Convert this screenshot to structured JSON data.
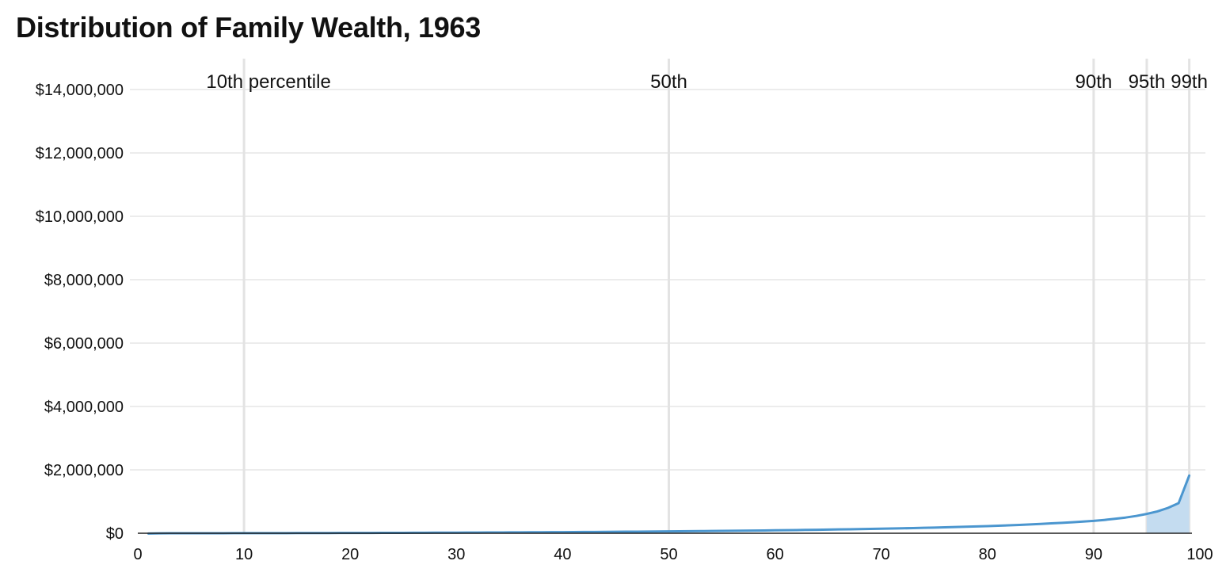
{
  "title": "Distribution of Family Wealth, 1963",
  "colors": {
    "line": "#4b96cf",
    "area": "#c4dcf0",
    "grid": "#d9d9d9",
    "percentile_line": "#e3e3e3"
  },
  "chart_data": {
    "type": "area",
    "title": "Distribution of Family Wealth, 1963",
    "xlabel": "",
    "ylabel": "",
    "xlim": [
      0,
      100
    ],
    "ylim": [
      0,
      14000000
    ],
    "grid": true,
    "x_ticks": [
      0,
      10,
      20,
      30,
      40,
      50,
      60,
      70,
      80,
      90,
      100
    ],
    "x_tick_labels": [
      "0",
      "10",
      "20",
      "30",
      "40",
      "50",
      "60",
      "70",
      "80",
      "90",
      "100"
    ],
    "y_ticks": [
      0,
      2000000,
      4000000,
      6000000,
      8000000,
      10000000,
      12000000,
      14000000
    ],
    "y_tick_labels": [
      "$0",
      "$2,000,000",
      "$4,000,000",
      "$6,000,000",
      "$8,000,000",
      "$10,000,000",
      "$12,000,000",
      "$14,000,000"
    ],
    "percentile_markers": [
      {
        "x": 10,
        "label": "10th percentile"
      },
      {
        "x": 50,
        "label": "50th"
      },
      {
        "x": 90,
        "label": "90th"
      },
      {
        "x": 95,
        "label": "95th"
      },
      {
        "x": 99,
        "label": "99th"
      }
    ],
    "highlight_from_x": 95,
    "series": [
      {
        "x": [
          1,
          2,
          3,
          4,
          5,
          6,
          7,
          8,
          9,
          10,
          11,
          12,
          13,
          14,
          15,
          16,
          17,
          18,
          19,
          20,
          21,
          22,
          23,
          24,
          25,
          26,
          27,
          28,
          29,
          30,
          31,
          32,
          33,
          34,
          35,
          36,
          37,
          38,
          39,
          40,
          41,
          42,
          43,
          44,
          45,
          46,
          47,
          48,
          49,
          50,
          51,
          52,
          53,
          54,
          55,
          56,
          57,
          58,
          59,
          60,
          61,
          62,
          63,
          64,
          65,
          66,
          67,
          68,
          69,
          70,
          71,
          72,
          73,
          74,
          75,
          76,
          77,
          78,
          79,
          80,
          81,
          82,
          83,
          84,
          85,
          86,
          87,
          88,
          89,
          90,
          91,
          92,
          93,
          94,
          95,
          96,
          97,
          98,
          99
        ],
        "values": [
          -8000,
          -3000,
          0,
          200,
          500,
          800,
          1200,
          1600,
          2000,
          2500,
          3000,
          3500,
          4000,
          4600,
          5200,
          5800,
          6500,
          7200,
          8000,
          8800,
          9700,
          10600,
          11600,
          12600,
          13700,
          14800,
          16000,
          17200,
          18500,
          19800,
          21200,
          22600,
          24100,
          25600,
          27200,
          28800,
          30500,
          32200,
          34000,
          35800,
          37700,
          39700,
          41800,
          44000,
          46300,
          48700,
          51200,
          53800,
          56500,
          59300,
          62200,
          65200,
          68300,
          71500,
          74800,
          78200,
          81700,
          85300,
          89000,
          92900,
          97000,
          101300,
          105800,
          110500,
          115400,
          120500,
          125800,
          131300,
          137000,
          143000,
          149300,
          156000,
          163000,
          170500,
          178500,
          187000,
          196000,
          205500,
          215500,
          226000,
          237500,
          250000,
          263500,
          278000,
          294000,
          311000,
          329000,
          348000,
          368000,
          390000,
          420000,
          455000,
          495000,
          545000,
          610000,
          690000,
          800000,
          950000,
          1820000
        ]
      }
    ]
  }
}
